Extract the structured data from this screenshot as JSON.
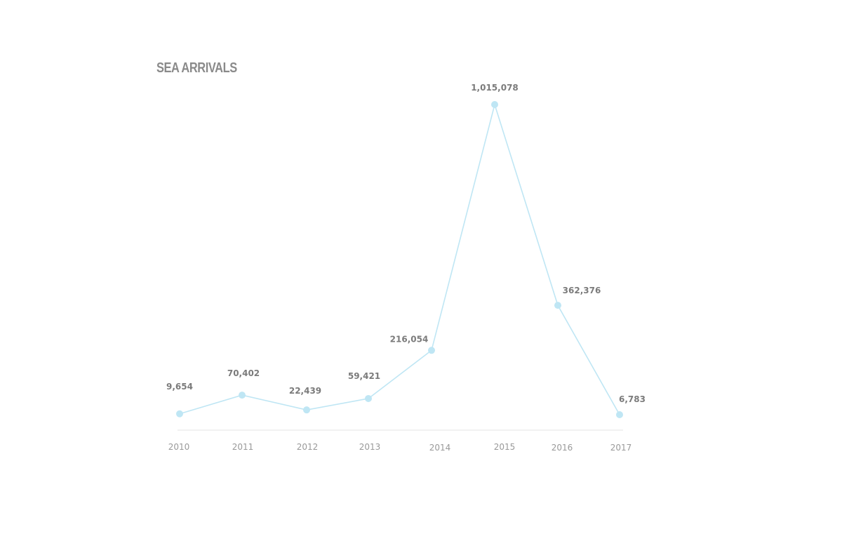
{
  "chart_data": {
    "type": "line",
    "title": "SEA ARRIVALS",
    "xlabel": "",
    "ylabel": "",
    "categories": [
      "2010",
      "2011",
      "2012",
      "2013",
      "2014",
      "2015",
      "2016",
      "2017"
    ],
    "values": [
      9654,
      70402,
      22439,
      59421,
      216054,
      1015078,
      362376,
      6783
    ],
    "value_labels": [
      "9,654",
      "70,402",
      "22,439",
      "59,421",
      "216,054",
      "1,015,078",
      "362,376",
      "6,783"
    ],
    "ylim": [
      0,
      1015078
    ],
    "grid": false,
    "legend": "none",
    "colors": {
      "line": "#bfe6f4",
      "point": "#bfe6f4",
      "baseline": "#e6e6e6"
    }
  }
}
